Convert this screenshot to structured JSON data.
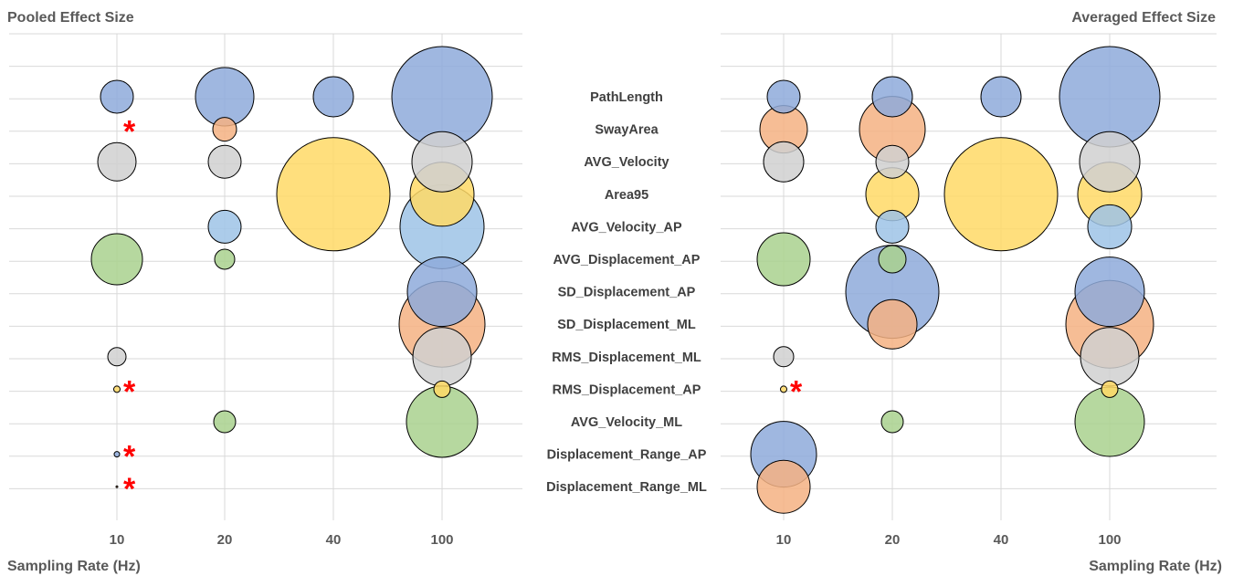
{
  "metrics": [
    "PathLength",
    "SwayArea",
    "AVG_Velocity",
    "Area95",
    "AVG_Velocity_AP",
    "AVG_Displacement_AP",
    "SD_Displacement_AP",
    "SD_Displacement_ML",
    "RMS_Displacement_ML",
    "RMS_Displacement_AP",
    "AVG_Velocity_ML",
    "Displacement_Range_AP",
    "Displacement_Range_ML"
  ],
  "colors": {
    "PathLength": "#8eaadb",
    "SwayArea": "#f4b183",
    "AVG_Velocity": "#d0d0d0",
    "Area95": "#ffd966",
    "AVG_Velocity_AP": "#9dc3e6",
    "AVG_Displacement_AP": "#a9d18e",
    "SD_Displacement_AP": "#8eaadb",
    "SD_Displacement_ML": "#f4b183",
    "RMS_Displacement_ML": "#d0d0d0",
    "RMS_Displacement_AP": "#ffd966",
    "AVG_Velocity_ML": "#a9d18e",
    "Displacement_Range_AP": "#8eaadb",
    "Displacement_Range_ML": "#f4b183"
  },
  "chart_data": [
    {
      "type": "bubble",
      "title": "Pooled Effect Size",
      "xlabel": "Sampling Rate (Hz)",
      "categories": [
        "10",
        "20",
        "40",
        "100"
      ],
      "grid": true,
      "points": [
        {
          "metric": "PathLength",
          "x": "10",
          "size": 18
        },
        {
          "metric": "PathLength",
          "x": "20",
          "size": 32
        },
        {
          "metric": "PathLength",
          "x": "40",
          "size": 22
        },
        {
          "metric": "PathLength",
          "x": "100",
          "size": 55
        },
        {
          "metric": "SwayArea",
          "x": "20",
          "size": 13
        },
        {
          "metric": "AVG_Velocity",
          "x": "10",
          "size": 21
        },
        {
          "metric": "AVG_Velocity",
          "x": "20",
          "size": 18
        },
        {
          "metric": "AVG_Velocity",
          "x": "100",
          "size": 33
        },
        {
          "metric": "Area95",
          "x": "40",
          "size": 62
        },
        {
          "metric": "Area95",
          "x": "100",
          "size": 35
        },
        {
          "metric": "AVG_Velocity_AP",
          "x": "20",
          "size": 18
        },
        {
          "metric": "AVG_Velocity_AP",
          "x": "100",
          "size": 46
        },
        {
          "metric": "AVG_Displacement_AP",
          "x": "10",
          "size": 28
        },
        {
          "metric": "AVG_Displacement_AP",
          "x": "20",
          "size": 11
        },
        {
          "metric": "SD_Displacement_AP",
          "x": "100",
          "size": 38
        },
        {
          "metric": "SD_Displacement_ML",
          "x": "100",
          "size": 47
        },
        {
          "metric": "RMS_Displacement_ML",
          "x": "10",
          "size": 10
        },
        {
          "metric": "RMS_Displacement_ML",
          "x": "100",
          "size": 32
        },
        {
          "metric": "RMS_Displacement_AP",
          "x": "10",
          "size": 3.5
        },
        {
          "metric": "RMS_Displacement_AP",
          "x": "100",
          "size": 9
        },
        {
          "metric": "AVG_Velocity_ML",
          "x": "20",
          "size": 12
        },
        {
          "metric": "AVG_Velocity_ML",
          "x": "100",
          "size": 39
        },
        {
          "metric": "Displacement_Range_AP",
          "x": "10",
          "size": 3
        },
        {
          "metric": "Displacement_Range_ML",
          "x": "10",
          "size": 1
        }
      ],
      "asterisks": [
        {
          "metric": "SwayArea",
          "x": "10"
        },
        {
          "metric": "RMS_Displacement_AP",
          "x": "10"
        },
        {
          "metric": "Displacement_Range_AP",
          "x": "10"
        },
        {
          "metric": "Displacement_Range_ML",
          "x": "10"
        }
      ]
    },
    {
      "type": "bubble",
      "title": "Averaged Effect Size",
      "xlabel": "Sampling Rate (Hz)",
      "categories": [
        "10",
        "20",
        "40",
        "100"
      ],
      "grid": true,
      "points": [
        {
          "metric": "PathLength",
          "x": "10",
          "size": 18
        },
        {
          "metric": "PathLength",
          "x": "20",
          "size": 22
        },
        {
          "metric": "PathLength",
          "x": "40",
          "size": 22
        },
        {
          "metric": "PathLength",
          "x": "100",
          "size": 55
        },
        {
          "metric": "SwayArea",
          "x": "10",
          "size": 26
        },
        {
          "metric": "SwayArea",
          "x": "20",
          "size": 36
        },
        {
          "metric": "AVG_Velocity",
          "x": "10",
          "size": 22
        },
        {
          "metric": "AVG_Velocity",
          "x": "20",
          "size": 18
        },
        {
          "metric": "AVG_Velocity",
          "x": "100",
          "size": 33
        },
        {
          "metric": "Area95",
          "x": "20",
          "size": 29
        },
        {
          "metric": "Area95",
          "x": "40",
          "size": 62
        },
        {
          "metric": "Area95",
          "x": "100",
          "size": 35
        },
        {
          "metric": "AVG_Velocity_AP",
          "x": "20",
          "size": 18
        },
        {
          "metric": "AVG_Velocity_AP",
          "x": "100",
          "size": 24
        },
        {
          "metric": "AVG_Displacement_AP",
          "x": "10",
          "size": 29
        },
        {
          "metric": "AVG_Displacement_AP",
          "x": "20",
          "size": 15
        },
        {
          "metric": "SD_Displacement_AP",
          "x": "20",
          "size": 51
        },
        {
          "metric": "SD_Displacement_AP",
          "x": "100",
          "size": 38
        },
        {
          "metric": "SD_Displacement_ML",
          "x": "20",
          "size": 27
        },
        {
          "metric": "SD_Displacement_ML",
          "x": "100",
          "size": 48
        },
        {
          "metric": "RMS_Displacement_ML",
          "x": "10",
          "size": 11
        },
        {
          "metric": "RMS_Displacement_ML",
          "x": "100",
          "size": 32
        },
        {
          "metric": "RMS_Displacement_AP",
          "x": "10",
          "size": 3.5
        },
        {
          "metric": "RMS_Displacement_AP",
          "x": "100",
          "size": 9
        },
        {
          "metric": "AVG_Velocity_ML",
          "x": "20",
          "size": 12
        },
        {
          "metric": "AVG_Velocity_ML",
          "x": "100",
          "size": 38
        },
        {
          "metric": "Displacement_Range_AP",
          "x": "10",
          "size": 36
        },
        {
          "metric": "Displacement_Range_ML",
          "x": "10",
          "size": 29
        }
      ],
      "asterisks": [
        {
          "metric": "RMS_Displacement_AP",
          "x": "10"
        }
      ]
    }
  ]
}
